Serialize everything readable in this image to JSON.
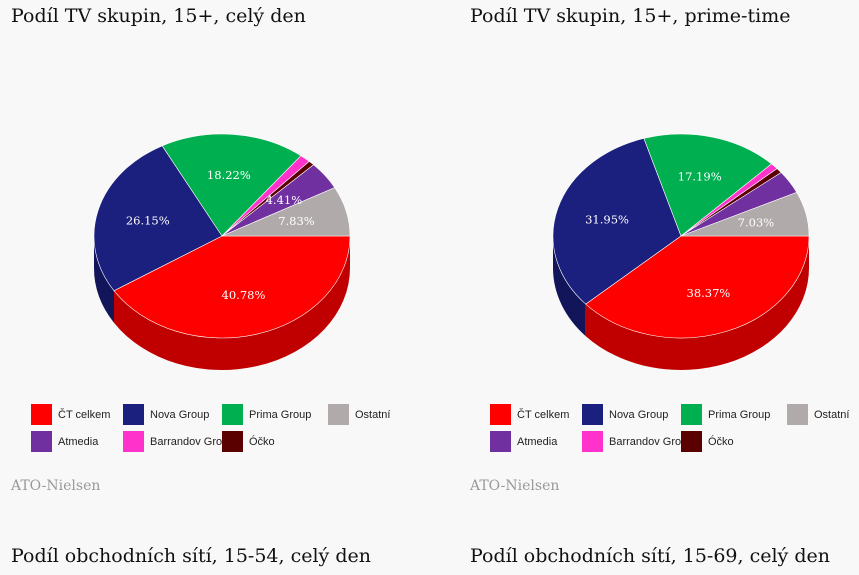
{
  "chart_data": [
    {
      "type": "pie",
      "title": "Podíl TV skupin, 15+, celý den",
      "slices": [
        {
          "name": "ČT celkem",
          "value": 40.78,
          "label": "40.78%",
          "color": "#ff0000",
          "side": "#c00000"
        },
        {
          "name": "Nova Group",
          "value": 26.15,
          "label": "26.15%",
          "color": "#1b1f7e",
          "side": "#12155a"
        },
        {
          "name": "Prima Group",
          "value": 18.22,
          "label": "18.22%",
          "color": "#00b050",
          "side": "#00803a"
        },
        {
          "name": "Barrandov Group",
          "value": 1.35,
          "label": "",
          "color": "#ff33cc",
          "side": "#c02098"
        },
        {
          "name": "Óčko",
          "value": 0.76,
          "label": "",
          "color": "#5a0000",
          "side": "#3a0000"
        },
        {
          "name": "Atmedia",
          "value": 4.41,
          "label": "4.41%",
          "color": "#7030a0",
          "side": "#4e1f72"
        },
        {
          "name": "Ostatní",
          "value": 7.83,
          "label": "7.83%",
          "color": "#b0aaaa",
          "side": "#888282"
        }
      ],
      "legend": [
        "ČT celkem",
        "Nova Group",
        "Prima Group",
        "Ostatní",
        "Atmedia",
        "Barrandov Group",
        "Óčko"
      ],
      "legend_colors": [
        "#ff0000",
        "#1b1f7e",
        "#00b050",
        "#b0aaaa",
        "#7030a0",
        "#ff33cc",
        "#5a0000"
      ],
      "source": "ATO-Nielsen"
    },
    {
      "type": "pie",
      "title": "Podíl TV skupin, 15+, prime-time",
      "slices": [
        {
          "name": "ČT celkem",
          "value": 38.37,
          "label": "38.37%",
          "color": "#ff0000",
          "side": "#c00000"
        },
        {
          "name": "Nova Group",
          "value": 31.95,
          "label": "31.95%",
          "color": "#1b1f7e",
          "side": "#12155a"
        },
        {
          "name": "Prima Group",
          "value": 17.19,
          "label": "17.19%",
          "color": "#00b050",
          "side": "#00803a"
        },
        {
          "name": "Barrandov Group",
          "value": 1.0,
          "label": "",
          "color": "#ff33cc",
          "side": "#c02098"
        },
        {
          "name": "Óčko",
          "value": 0.8,
          "label": "",
          "color": "#5a0000",
          "side": "#3a0000"
        },
        {
          "name": "Atmedia",
          "value": 3.66,
          "label": "",
          "color": "#7030a0",
          "side": "#4e1f72"
        },
        {
          "name": "Ostatní",
          "value": 7.03,
          "label": "7.03%",
          "color": "#b0aaaa",
          "side": "#888282"
        }
      ],
      "legend": [
        "ČT celkem",
        "Nova Group",
        "Prima Group",
        "Ostatní",
        "Atmedia",
        "Barrandov Group",
        "Óčko"
      ],
      "legend_colors": [
        "#ff0000",
        "#1b1f7e",
        "#00b050",
        "#b0aaaa",
        "#7030a0",
        "#ff33cc",
        "#5a0000"
      ],
      "source": "ATO-Nielsen"
    }
  ],
  "next_titles": [
    "Podíl obchodních sítí, 15-54, celý den",
    "Podíl obchodních sítí, 15-69, celý den"
  ]
}
